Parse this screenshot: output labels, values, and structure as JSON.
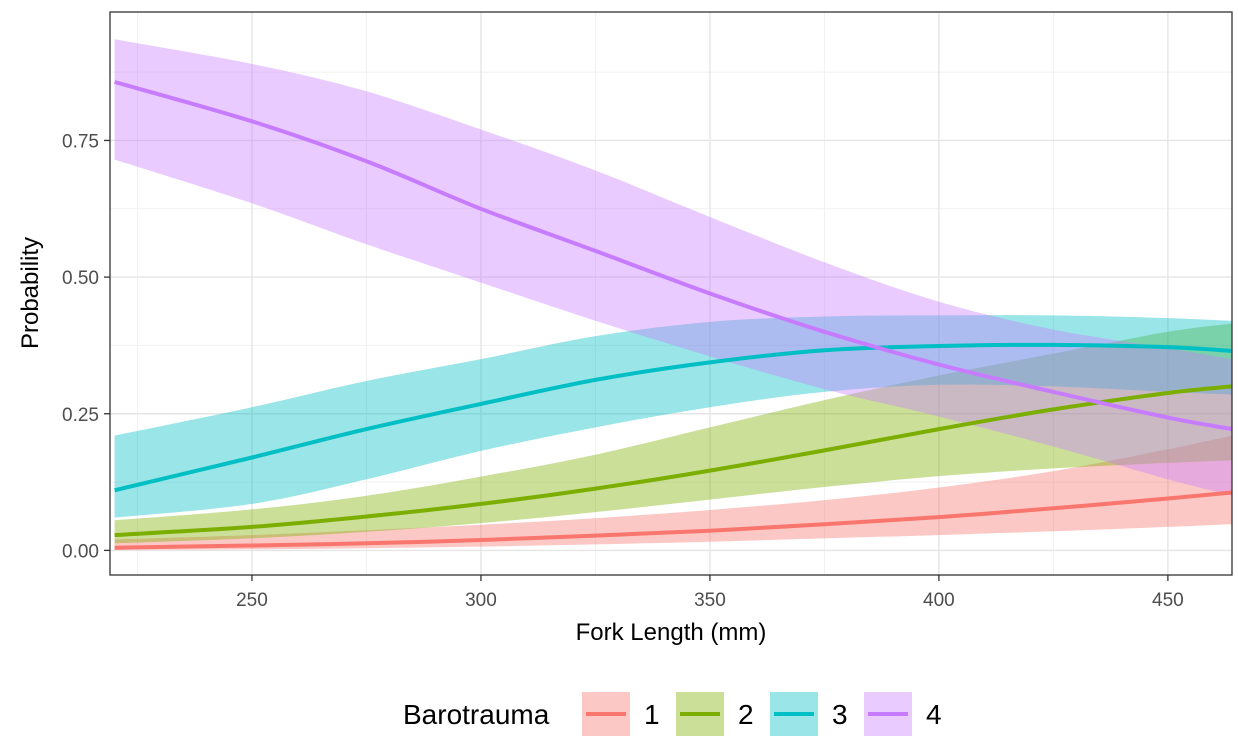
{
  "chart_data": {
    "type": "line",
    "title": "",
    "xlabel": "Fork Length (mm)",
    "ylabel": "Probability",
    "xlim": [
      219,
      464
    ],
    "ylim": [
      -0.045,
      0.985
    ],
    "x_ticks": [
      250,
      300,
      350,
      400,
      450
    ],
    "x_tick_labels": [
      "250",
      "300",
      "350",
      "400",
      "450"
    ],
    "y_ticks": [
      0,
      0.25,
      0.5,
      0.75
    ],
    "y_tick_labels": [
      "0.00",
      "0.25",
      "0.50",
      "0.75"
    ],
    "grid": true,
    "legend": {
      "title": "Barotrauma",
      "position": "bottom"
    },
    "x": [
      220,
      250,
      275,
      300,
      325,
      350,
      375,
      400,
      425,
      450,
      464
    ],
    "series": [
      {
        "name": "1",
        "color": "#F8766D",
        "values": [
          0.005,
          0.009,
          0.013,
          0.019,
          0.027,
          0.036,
          0.048,
          0.061,
          0.077,
          0.095,
          0.106
        ],
        "lower": [
          0.001,
          0.002,
          0.004,
          0.007,
          0.011,
          0.016,
          0.022,
          0.028,
          0.035,
          0.043,
          0.048
        ],
        "upper": [
          0.02,
          0.028,
          0.037,
          0.047,
          0.059,
          0.074,
          0.092,
          0.115,
          0.145,
          0.185,
          0.21
        ]
      },
      {
        "name": "2",
        "color": "#7CAE00",
        "values": [
          0.028,
          0.043,
          0.062,
          0.085,
          0.113,
          0.146,
          0.183,
          0.222,
          0.258,
          0.288,
          0.3
        ],
        "lower": [
          0.013,
          0.022,
          0.034,
          0.05,
          0.07,
          0.093,
          0.116,
          0.136,
          0.15,
          0.16,
          0.165
        ],
        "upper": [
          0.055,
          0.075,
          0.1,
          0.135,
          0.175,
          0.225,
          0.275,
          0.32,
          0.36,
          0.4,
          0.415
        ]
      },
      {
        "name": "3",
        "color": "#00BFC4",
        "values": [
          0.11,
          0.17,
          0.222,
          0.268,
          0.312,
          0.344,
          0.366,
          0.374,
          0.376,
          0.372,
          0.365
        ],
        "lower": [
          0.06,
          0.085,
          0.13,
          0.182,
          0.225,
          0.262,
          0.29,
          0.303,
          0.3,
          0.29,
          0.285
        ],
        "upper": [
          0.21,
          0.262,
          0.31,
          0.35,
          0.392,
          0.418,
          0.428,
          0.43,
          0.43,
          0.425,
          0.42
        ]
      },
      {
        "name": "4",
        "color": "#C77CFF",
        "values": [
          0.857,
          0.785,
          0.712,
          0.625,
          0.548,
          0.47,
          0.4,
          0.34,
          0.29,
          0.243,
          0.222
        ],
        "lower": [
          0.715,
          0.635,
          0.56,
          0.49,
          0.42,
          0.355,
          0.295,
          0.245,
          0.19,
          0.13,
          0.1
        ],
        "upper": [
          0.935,
          0.89,
          0.84,
          0.77,
          0.695,
          0.61,
          0.527,
          0.455,
          0.404,
          0.37,
          0.35
        ]
      }
    ]
  }
}
